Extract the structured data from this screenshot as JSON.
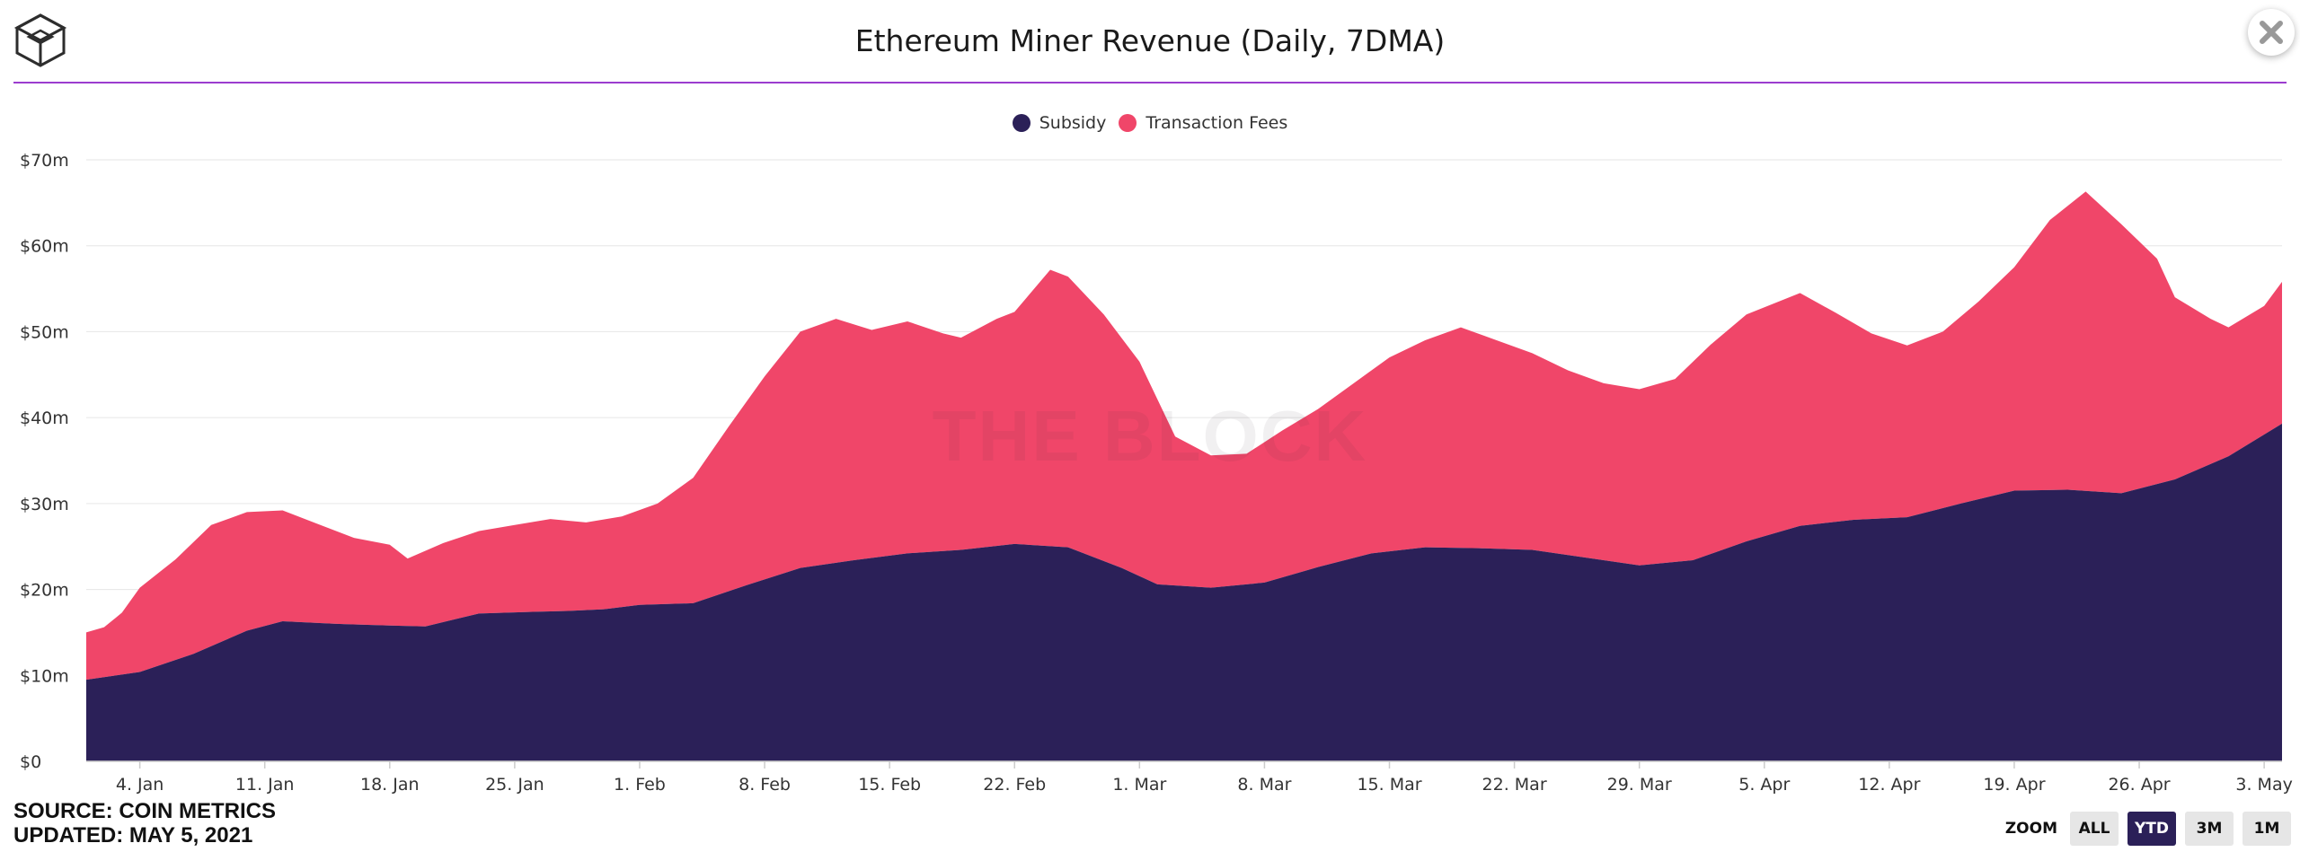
{
  "title": "Ethereum Miner Revenue (Daily, 7DMA)",
  "watermark": "THE BLOCK",
  "source_line": "SOURCE: COIN METRICS",
  "updated_line": "UPDATED: MAY 5, 2021",
  "zoom": {
    "label": "ZOOM",
    "buttons": [
      "ALL",
      "YTD",
      "3M",
      "1M"
    ],
    "selected": "YTD"
  },
  "colors": {
    "subsidy": "#2b2058",
    "fees": "#f04669",
    "accent_rule": "#9b3ccf",
    "grid": "#e6e6e6"
  },
  "chart_data": {
    "type": "area",
    "stacked": true,
    "title": "Ethereum Miner Revenue (Daily, 7DMA)",
    "x_range": [
      "2021-01-01",
      "2021-05-04"
    ],
    "y_ticks": [
      "$0",
      "$10m",
      "$20m",
      "$30m",
      "$40m",
      "$50m",
      "$60m",
      "$70m"
    ],
    "ylim": [
      0,
      70
    ],
    "x_ticks": [
      {
        "date": "2021-01-04",
        "label": "4. Jan"
      },
      {
        "date": "2021-01-11",
        "label": "11. Jan"
      },
      {
        "date": "2021-01-18",
        "label": "18. Jan"
      },
      {
        "date": "2021-01-25",
        "label": "25. Jan"
      },
      {
        "date": "2021-02-01",
        "label": "1. Feb"
      },
      {
        "date": "2021-02-08",
        "label": "8. Feb"
      },
      {
        "date": "2021-02-15",
        "label": "15. Feb"
      },
      {
        "date": "2021-02-22",
        "label": "22. Feb"
      },
      {
        "date": "2021-03-01",
        "label": "1. Mar"
      },
      {
        "date": "2021-03-08",
        "label": "8. Mar"
      },
      {
        "date": "2021-03-15",
        "label": "15. Mar"
      },
      {
        "date": "2021-03-22",
        "label": "22. Mar"
      },
      {
        "date": "2021-03-29",
        "label": "29. Mar"
      },
      {
        "date": "2021-04-05",
        "label": "5. Apr"
      },
      {
        "date": "2021-04-12",
        "label": "12. Apr"
      },
      {
        "date": "2021-04-19",
        "label": "19. Apr"
      },
      {
        "date": "2021-04-26",
        "label": "26. Apr"
      },
      {
        "date": "2021-05-03",
        "label": "3. May"
      }
    ],
    "legend": "top-center",
    "grid": true,
    "series": [
      {
        "name": "Subsidy",
        "color": "#2b2058",
        "points": [
          [
            "2021-01-01",
            9.5
          ],
          [
            "2021-01-04",
            10.4
          ],
          [
            "2021-01-07",
            12.5
          ],
          [
            "2021-01-10",
            15.2
          ],
          [
            "2021-01-12",
            16.3
          ],
          [
            "2021-01-15",
            16.0
          ],
          [
            "2021-01-18",
            15.8
          ],
          [
            "2021-01-20",
            15.7
          ],
          [
            "2021-01-23",
            17.2
          ],
          [
            "2021-01-26",
            17.4
          ],
          [
            "2021-01-28",
            17.5
          ],
          [
            "2021-01-30",
            17.7
          ],
          [
            "2021-02-01",
            18.2
          ],
          [
            "2021-02-04",
            18.4
          ],
          [
            "2021-02-07",
            20.5
          ],
          [
            "2021-02-10",
            22.5
          ],
          [
            "2021-02-13",
            23.4
          ],
          [
            "2021-02-16",
            24.2
          ],
          [
            "2021-02-19",
            24.6
          ],
          [
            "2021-02-22",
            25.3
          ],
          [
            "2021-02-25",
            24.9
          ],
          [
            "2021-02-28",
            22.5
          ],
          [
            "2021-03-02",
            20.6
          ],
          [
            "2021-03-05",
            20.2
          ],
          [
            "2021-03-08",
            20.8
          ],
          [
            "2021-03-11",
            22.6
          ],
          [
            "2021-03-14",
            24.2
          ],
          [
            "2021-03-17",
            24.9
          ],
          [
            "2021-03-20",
            24.8
          ],
          [
            "2021-03-23",
            24.6
          ],
          [
            "2021-03-26",
            23.7
          ],
          [
            "2021-03-29",
            22.8
          ],
          [
            "2021-04-01",
            23.4
          ],
          [
            "2021-04-04",
            25.6
          ],
          [
            "2021-04-07",
            27.4
          ],
          [
            "2021-04-10",
            28.1
          ],
          [
            "2021-04-13",
            28.4
          ],
          [
            "2021-04-16",
            30.0
          ],
          [
            "2021-04-19",
            31.5
          ],
          [
            "2021-04-22",
            31.6
          ],
          [
            "2021-04-25",
            31.2
          ],
          [
            "2021-04-28",
            32.8
          ],
          [
            "2021-05-01",
            35.5
          ],
          [
            "2021-05-04",
            39.3
          ]
        ]
      },
      {
        "name": "Transaction Fees",
        "color": "#f04669",
        "points_total": [
          [
            "2021-01-01",
            15.0
          ],
          [
            "2021-01-02",
            15.6
          ],
          [
            "2021-01-03",
            17.3
          ],
          [
            "2021-01-04",
            20.2
          ],
          [
            "2021-01-06",
            23.5
          ],
          [
            "2021-01-08",
            27.5
          ],
          [
            "2021-01-10",
            29.0
          ],
          [
            "2021-01-12",
            29.2
          ],
          [
            "2021-01-14",
            27.6
          ],
          [
            "2021-01-16",
            26.0
          ],
          [
            "2021-01-18",
            25.2
          ],
          [
            "2021-01-19",
            23.6
          ],
          [
            "2021-01-21",
            25.4
          ],
          [
            "2021-01-23",
            26.8
          ],
          [
            "2021-01-25",
            27.5
          ],
          [
            "2021-01-27",
            28.2
          ],
          [
            "2021-01-29",
            27.8
          ],
          [
            "2021-01-31",
            28.5
          ],
          [
            "2021-02-02",
            30.0
          ],
          [
            "2021-02-04",
            33.0
          ],
          [
            "2021-02-06",
            39.0
          ],
          [
            "2021-02-08",
            44.8
          ],
          [
            "2021-02-10",
            50.0
          ],
          [
            "2021-02-12",
            51.5
          ],
          [
            "2021-02-14",
            50.2
          ],
          [
            "2021-02-16",
            51.2
          ],
          [
            "2021-02-18",
            49.8
          ],
          [
            "2021-02-19",
            49.3
          ],
          [
            "2021-02-21",
            51.5
          ],
          [
            "2021-02-22",
            52.3
          ],
          [
            "2021-02-24",
            57.2
          ],
          [
            "2021-02-25",
            56.4
          ],
          [
            "2021-02-27",
            52.0
          ],
          [
            "2021-03-01",
            46.5
          ],
          [
            "2021-03-03",
            37.8
          ],
          [
            "2021-03-05",
            35.6
          ],
          [
            "2021-03-07",
            35.8
          ],
          [
            "2021-03-09",
            38.5
          ],
          [
            "2021-03-11",
            41.0
          ],
          [
            "2021-03-13",
            44.0
          ],
          [
            "2021-03-15",
            47.0
          ],
          [
            "2021-03-17",
            49.0
          ],
          [
            "2021-03-19",
            50.5
          ],
          [
            "2021-03-21",
            49.0
          ],
          [
            "2021-03-23",
            47.5
          ],
          [
            "2021-03-25",
            45.5
          ],
          [
            "2021-03-27",
            44.0
          ],
          [
            "2021-03-29",
            43.3
          ],
          [
            "2021-03-31",
            44.5
          ],
          [
            "2021-04-02",
            48.5
          ],
          [
            "2021-04-04",
            52.0
          ],
          [
            "2021-04-07",
            54.5
          ],
          [
            "2021-04-09",
            52.2
          ],
          [
            "2021-04-11",
            49.8
          ],
          [
            "2021-04-13",
            48.4
          ],
          [
            "2021-04-15",
            50.0
          ],
          [
            "2021-04-17",
            53.5
          ],
          [
            "2021-04-19",
            57.5
          ],
          [
            "2021-04-21",
            63.0
          ],
          [
            "2021-04-23",
            66.3
          ],
          [
            "2021-04-25",
            62.5
          ],
          [
            "2021-04-27",
            58.5
          ],
          [
            "2021-04-28",
            54.0
          ],
          [
            "2021-04-30",
            51.5
          ],
          [
            "2021-05-01",
            50.5
          ],
          [
            "2021-05-03",
            53.0
          ],
          [
            "2021-05-04",
            55.8
          ]
        ]
      }
    ]
  }
}
